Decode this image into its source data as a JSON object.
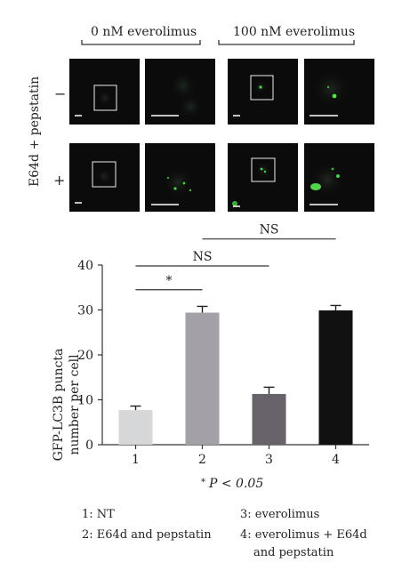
{
  "conditions": [
    "0 nM everolimus",
    "100 nM everolimus"
  ],
  "side_label": "E64d + pepstatin",
  "row_signs": [
    "−",
    "+"
  ],
  "chart_data": {
    "type": "bar",
    "categories": [
      "1",
      "2",
      "3",
      "4"
    ],
    "values": [
      7.7,
      29.4,
      11.3,
      29.9
    ],
    "errors": [
      0.9,
      1.4,
      1.5,
      1.1
    ],
    "colors": [
      "#d6d7d9",
      "#a3a0a8",
      "#68636b",
      "#111111"
    ],
    "ylabel_line1": "GFP-LC3B puncta",
    "ylabel_line2": "number per cell",
    "ylim": [
      0,
      40
    ],
    "yticks": [
      "0",
      "10",
      "20",
      "30",
      "40"
    ],
    "significance": [
      {
        "from": "1",
        "to": "2",
        "label": "*"
      },
      {
        "from": "1",
        "to": "3",
        "label": "NS"
      },
      {
        "from": "2",
        "to": "4",
        "label": "NS"
      }
    ],
    "footnote_star": "*",
    "footnote_text": "P < 0.05"
  },
  "legend": [
    "1: NT",
    "2: E64d and pepstatin",
    "3: everolimus",
    "4: everolimus + E64d",
    "and pepstatin"
  ]
}
